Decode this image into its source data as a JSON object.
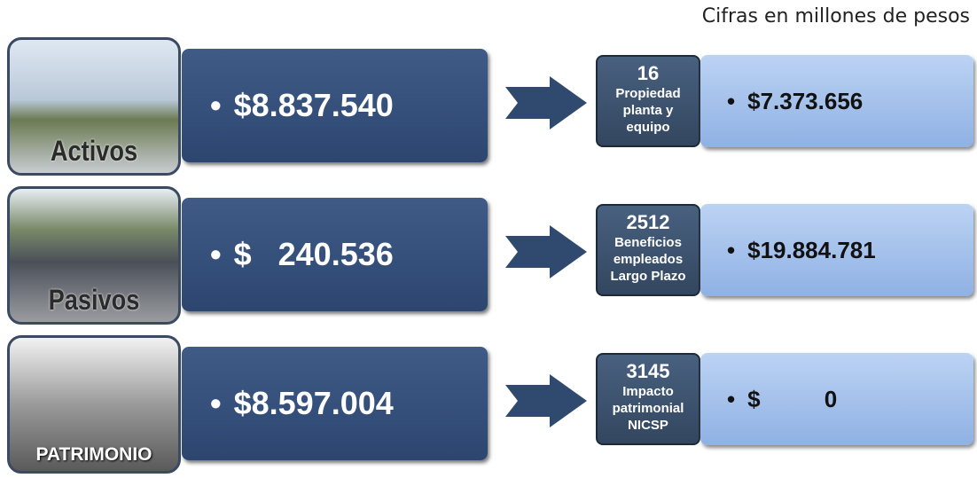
{
  "note": "Cifras en millones de pesos",
  "rows": [
    {
      "label": "Activos",
      "value": "$8.837.540",
      "code": "16",
      "account": [
        "Propiedad",
        "planta y",
        "equipo"
      ],
      "account_value": "$7.373.656"
    },
    {
      "label": "Pasivos",
      "value": "$   240.536",
      "code": "2512",
      "account": [
        "Beneficios",
        "empleados",
        "Largo Plazo"
      ],
      "account_value": "$19.884.781"
    },
    {
      "label": "PATRIMONIO",
      "value": "$8.597.004",
      "code": "3145",
      "account": [
        "Impacto",
        "patrimonial",
        "NICSP"
      ],
      "account_value": "$          0"
    }
  ]
}
